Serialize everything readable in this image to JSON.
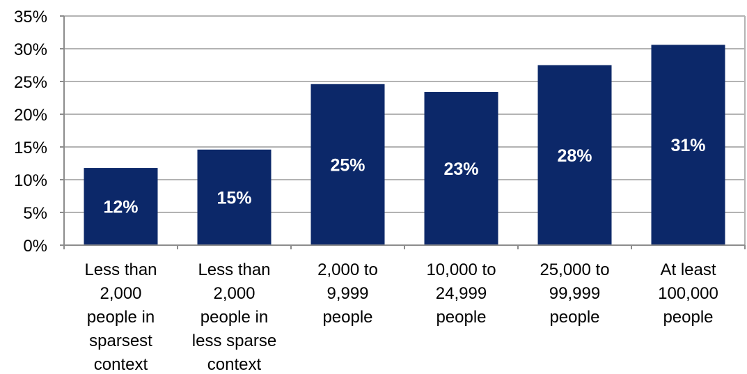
{
  "chart_data": {
    "type": "bar",
    "title": "",
    "xlabel": "",
    "ylabel": "",
    "ylim": [
      0,
      35
    ],
    "yticks": [
      0,
      5,
      10,
      15,
      20,
      25,
      30,
      35
    ],
    "ytick_labels": [
      "0%",
      "5%",
      "10%",
      "15%",
      "20%",
      "25%",
      "30%",
      "35%"
    ],
    "grid": true,
    "legend": "none",
    "categories": [
      [
        "Less than",
        "2,000",
        "people in",
        "sparsest",
        "context"
      ],
      [
        "Less than",
        "2,000",
        "people in",
        "less sparse",
        "context"
      ],
      [
        "2,000 to",
        "9,999",
        "people"
      ],
      [
        "10,000 to",
        "24,999",
        "people"
      ],
      [
        "25,000 to",
        "99,999",
        "people"
      ],
      [
        "At least",
        "100,000",
        "people"
      ]
    ],
    "values": [
      11.8,
      14.6,
      24.6,
      23.4,
      27.5,
      30.6
    ],
    "data_labels": [
      "12%",
      "15%",
      "25%",
      "23%",
      "28%",
      "31%"
    ],
    "colors": {
      "bar": "#0c2869",
      "gridline": "#b3b3b3",
      "axis": "#8c8c8c",
      "tick_text": "#000000",
      "data_label_text": "#ffffff"
    }
  }
}
